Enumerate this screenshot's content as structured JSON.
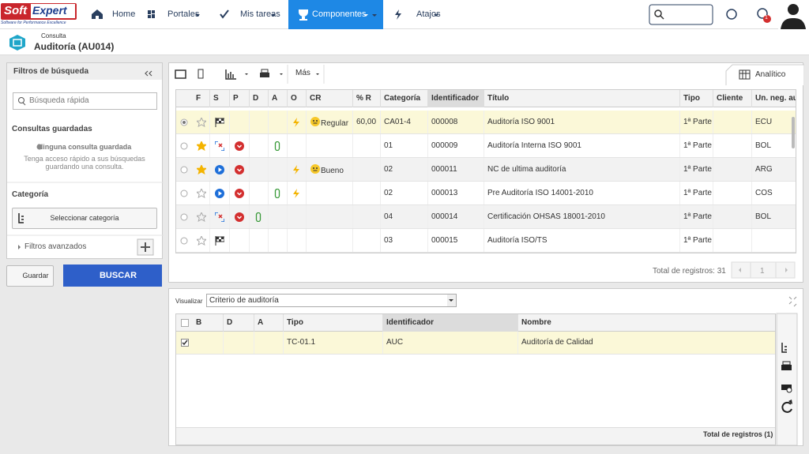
{
  "brand": {
    "name": "Soft",
    "name2": "Expert",
    "tagline": "Software for Performance Excellence"
  },
  "nav": [
    "Home",
    "Portales",
    "Mis tareas",
    "Componentes",
    "Atajos"
  ],
  "notifications": 1,
  "header": {
    "subtitle": "Consulta",
    "title": "Auditoría (AU014)"
  },
  "sidebar": {
    "title": "Filtros de búsqueda",
    "search_placeholder": "Búsqueda rápida",
    "saved_title": "Consultas guardadas",
    "saved_empty": "Ninguna consulta guardada",
    "saved_hint": "Tenga acceso rápido a sus búsquedas guardando una consulta.",
    "category_title": "Categoría",
    "category_button": "Seleccionar categoría",
    "advanced": "Filtros avanzados",
    "save_button": "Guardar",
    "search_button": "BUSCAR"
  },
  "toolbar": {
    "more": "Más",
    "tab": "Analítico"
  },
  "grid": {
    "columns": [
      "F",
      "S",
      "P",
      "D",
      "A",
      "O",
      "CR",
      "% R",
      "Categoría",
      "Identificador",
      "Título",
      "Tipo",
      "Cliente",
      "Un. neg. au"
    ],
    "rows": [
      {
        "cr": "Regular",
        "r": "60,00",
        "categoria": "CA01-4",
        "id": "000008",
        "titulo": "Auditoría ISO 9001",
        "tipo": "1ª Parte",
        "un": "ECU"
      },
      {
        "categoria": "01",
        "id": "000009",
        "titulo": "Auditoría Interna ISO 9001",
        "tipo": "1ª Parte",
        "un": "BOL"
      },
      {
        "cr": "Bueno",
        "categoria": "02",
        "id": "000011",
        "titulo": "NC de ultima auditoría",
        "tipo": "1ª Parte",
        "un": "ARG"
      },
      {
        "categoria": "02",
        "id": "000013",
        "titulo": "Pre Auditoría ISO 14001-2010",
        "tipo": "1ª Parte",
        "un": "COS"
      },
      {
        "categoria": "04",
        "id": "000014",
        "titulo": "Certificación OHSAS 18001-2010",
        "tipo": "1ª Parte",
        "un": "BOL"
      },
      {
        "categoria": "03",
        "id": "000015",
        "titulo": "Auditoría ISO/TS",
        "tipo": "1ª Parte"
      }
    ],
    "total": "Total de registros: 31",
    "page": 1
  },
  "detail": {
    "visualize_label": "Visualizar",
    "select": "Criterio de auditoría",
    "columns": [
      "B",
      "D",
      "A",
      "Tipo",
      "Identificador",
      "Nombre"
    ],
    "rows": [
      {
        "tipo": "TC-01.1",
        "id": "AUC",
        "nombre": "Auditoría de Calidad"
      }
    ],
    "total": "Total de registros (1)"
  }
}
